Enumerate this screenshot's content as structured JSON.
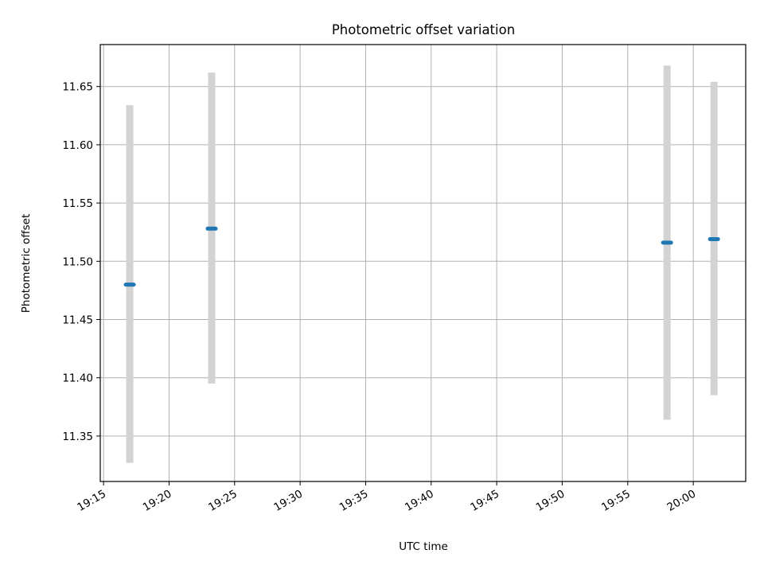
{
  "chart_data": {
    "type": "scatter",
    "title": "Photometric offset variation",
    "xlabel": "UTC time",
    "ylabel": "Photometric offset",
    "x_tick_labels": [
      "19:15",
      "19:20",
      "19:25",
      "19:30",
      "19:35",
      "19:40",
      "19:45",
      "19:50",
      "19:55",
      "20:00"
    ],
    "y_tick_labels": [
      "11.35",
      "11.40",
      "11.45",
      "11.50",
      "11.55",
      "11.60",
      "11.65"
    ],
    "y_ticks": [
      11.35,
      11.4,
      11.45,
      11.5,
      11.55,
      11.6,
      11.65
    ],
    "xlim": [
      "19:14:45",
      "20:04:00"
    ],
    "ylim": [
      11.311,
      11.686
    ],
    "grid": true,
    "colors": {
      "marker": "#1f77b4",
      "errorbar": "#d3d3d3",
      "grid": "#b0b0b0"
    },
    "series": [
      {
        "points": [
          {
            "x": "19:17:00",
            "y": 11.48,
            "ymin": 11.327,
            "ymax": 11.634
          },
          {
            "x": "19:23:15",
            "y": 11.528,
            "ymin": 11.395,
            "ymax": 11.662
          },
          {
            "x": "19:58:00",
            "y": 11.516,
            "ymin": 11.364,
            "ymax": 11.668
          },
          {
            "x": "20:01:35",
            "y": 11.519,
            "ymin": 11.385,
            "ymax": 11.654
          }
        ]
      }
    ]
  }
}
